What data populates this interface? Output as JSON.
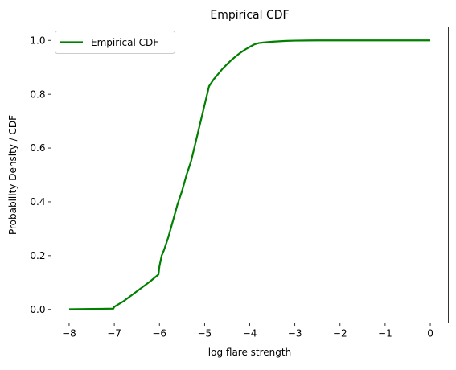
{
  "chart_data": {
    "type": "line",
    "title": "Empirical CDF",
    "xlabel": "log flare strength",
    "ylabel": "Probability Density / CDF",
    "xlim": [
      -8.4,
      0.4
    ],
    "ylim": [
      -0.05,
      1.05
    ],
    "xticks": [
      -8,
      -7,
      -6,
      -5,
      -4,
      -3,
      -2,
      -1,
      0
    ],
    "yticks": [
      0.0,
      0.2,
      0.4,
      0.6,
      0.8,
      1.0
    ],
    "xtick_labels": [
      "−8",
      "−7",
      "−6",
      "−5",
      "−4",
      "−3",
      "−2",
      "−1",
      "0"
    ],
    "ytick_labels": [
      "0.0",
      "0.2",
      "0.4",
      "0.6",
      "0.8",
      "1.0"
    ],
    "grid": false,
    "legend": {
      "position": "top-left"
    },
    "series": [
      {
        "name": "Empirical CDF",
        "color": "#008000",
        "x": [
          -8.0,
          -7.5,
          -7.02,
          -7.0,
          -6.8,
          -6.6,
          -6.4,
          -6.2,
          -6.02,
          -6.0,
          -5.95,
          -5.9,
          -5.8,
          -5.7,
          -5.6,
          -5.5,
          -5.4,
          -5.3,
          -5.2,
          -5.1,
          -5.0,
          -4.9,
          -4.8,
          -4.7,
          -4.6,
          -4.5,
          -4.4,
          -4.3,
          -4.2,
          -4.1,
          -4.0,
          -3.9,
          -3.8,
          -3.7,
          -3.5,
          -3.2,
          -3.0,
          -2.5,
          -2.0,
          -1.0,
          0.0
        ],
        "y": [
          0.001,
          0.002,
          0.003,
          0.01,
          0.03,
          0.055,
          0.08,
          0.105,
          0.13,
          0.16,
          0.2,
          0.22,
          0.27,
          0.33,
          0.39,
          0.44,
          0.5,
          0.55,
          0.62,
          0.69,
          0.76,
          0.83,
          0.855,
          0.875,
          0.895,
          0.912,
          0.928,
          0.942,
          0.955,
          0.966,
          0.976,
          0.985,
          0.99,
          0.992,
          0.995,
          0.998,
          0.999,
          1.0,
          1.0,
          1.0,
          1.0
        ]
      }
    ]
  }
}
